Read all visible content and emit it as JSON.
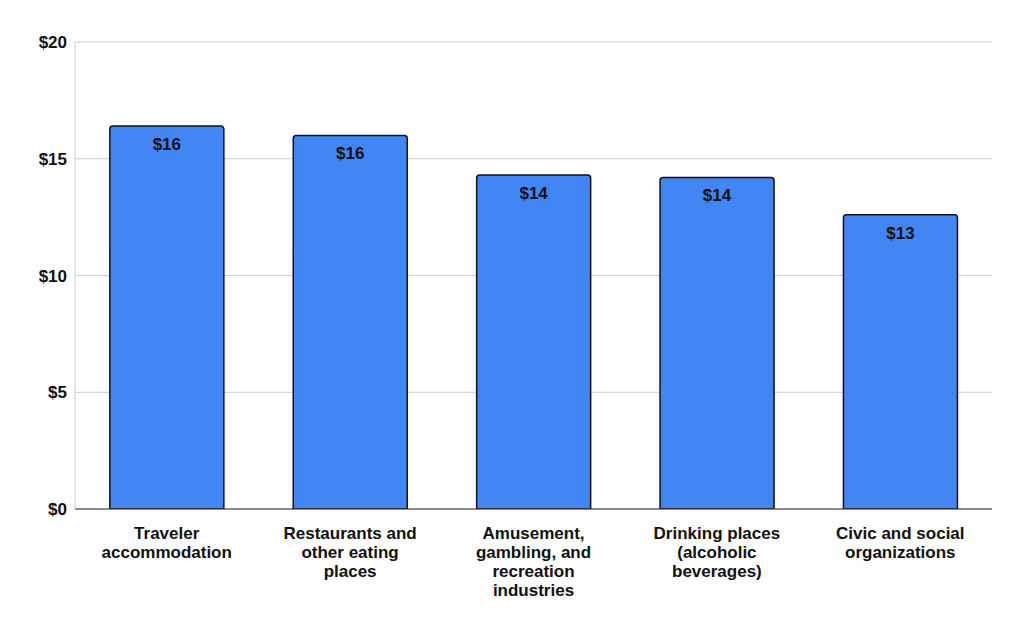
{
  "chart_data": {
    "type": "bar",
    "categories": [
      "Traveler accommodation",
      "Restaurants and other eating places",
      "Amusement, gambling, and recreation industries",
      "Drinking places (alcoholic beverages)",
      "Civic and social organizations"
    ],
    "values": [
      16.4,
      16.0,
      14.3,
      14.2,
      12.6
    ],
    "value_labels": [
      "$16",
      "$16",
      "$14",
      "$14",
      "$13"
    ],
    "color": "#4285f4",
    "ylim": [
      0,
      20
    ],
    "yticks": [
      {
        "value": 0,
        "label": "$0"
      },
      {
        "value": 5,
        "label": "$5"
      },
      {
        "value": 10,
        "label": "$10"
      },
      {
        "value": 15,
        "label": "$15"
      },
      {
        "value": 20,
        "label": "$20"
      }
    ],
    "grid": true,
    "data_labels": true
  }
}
